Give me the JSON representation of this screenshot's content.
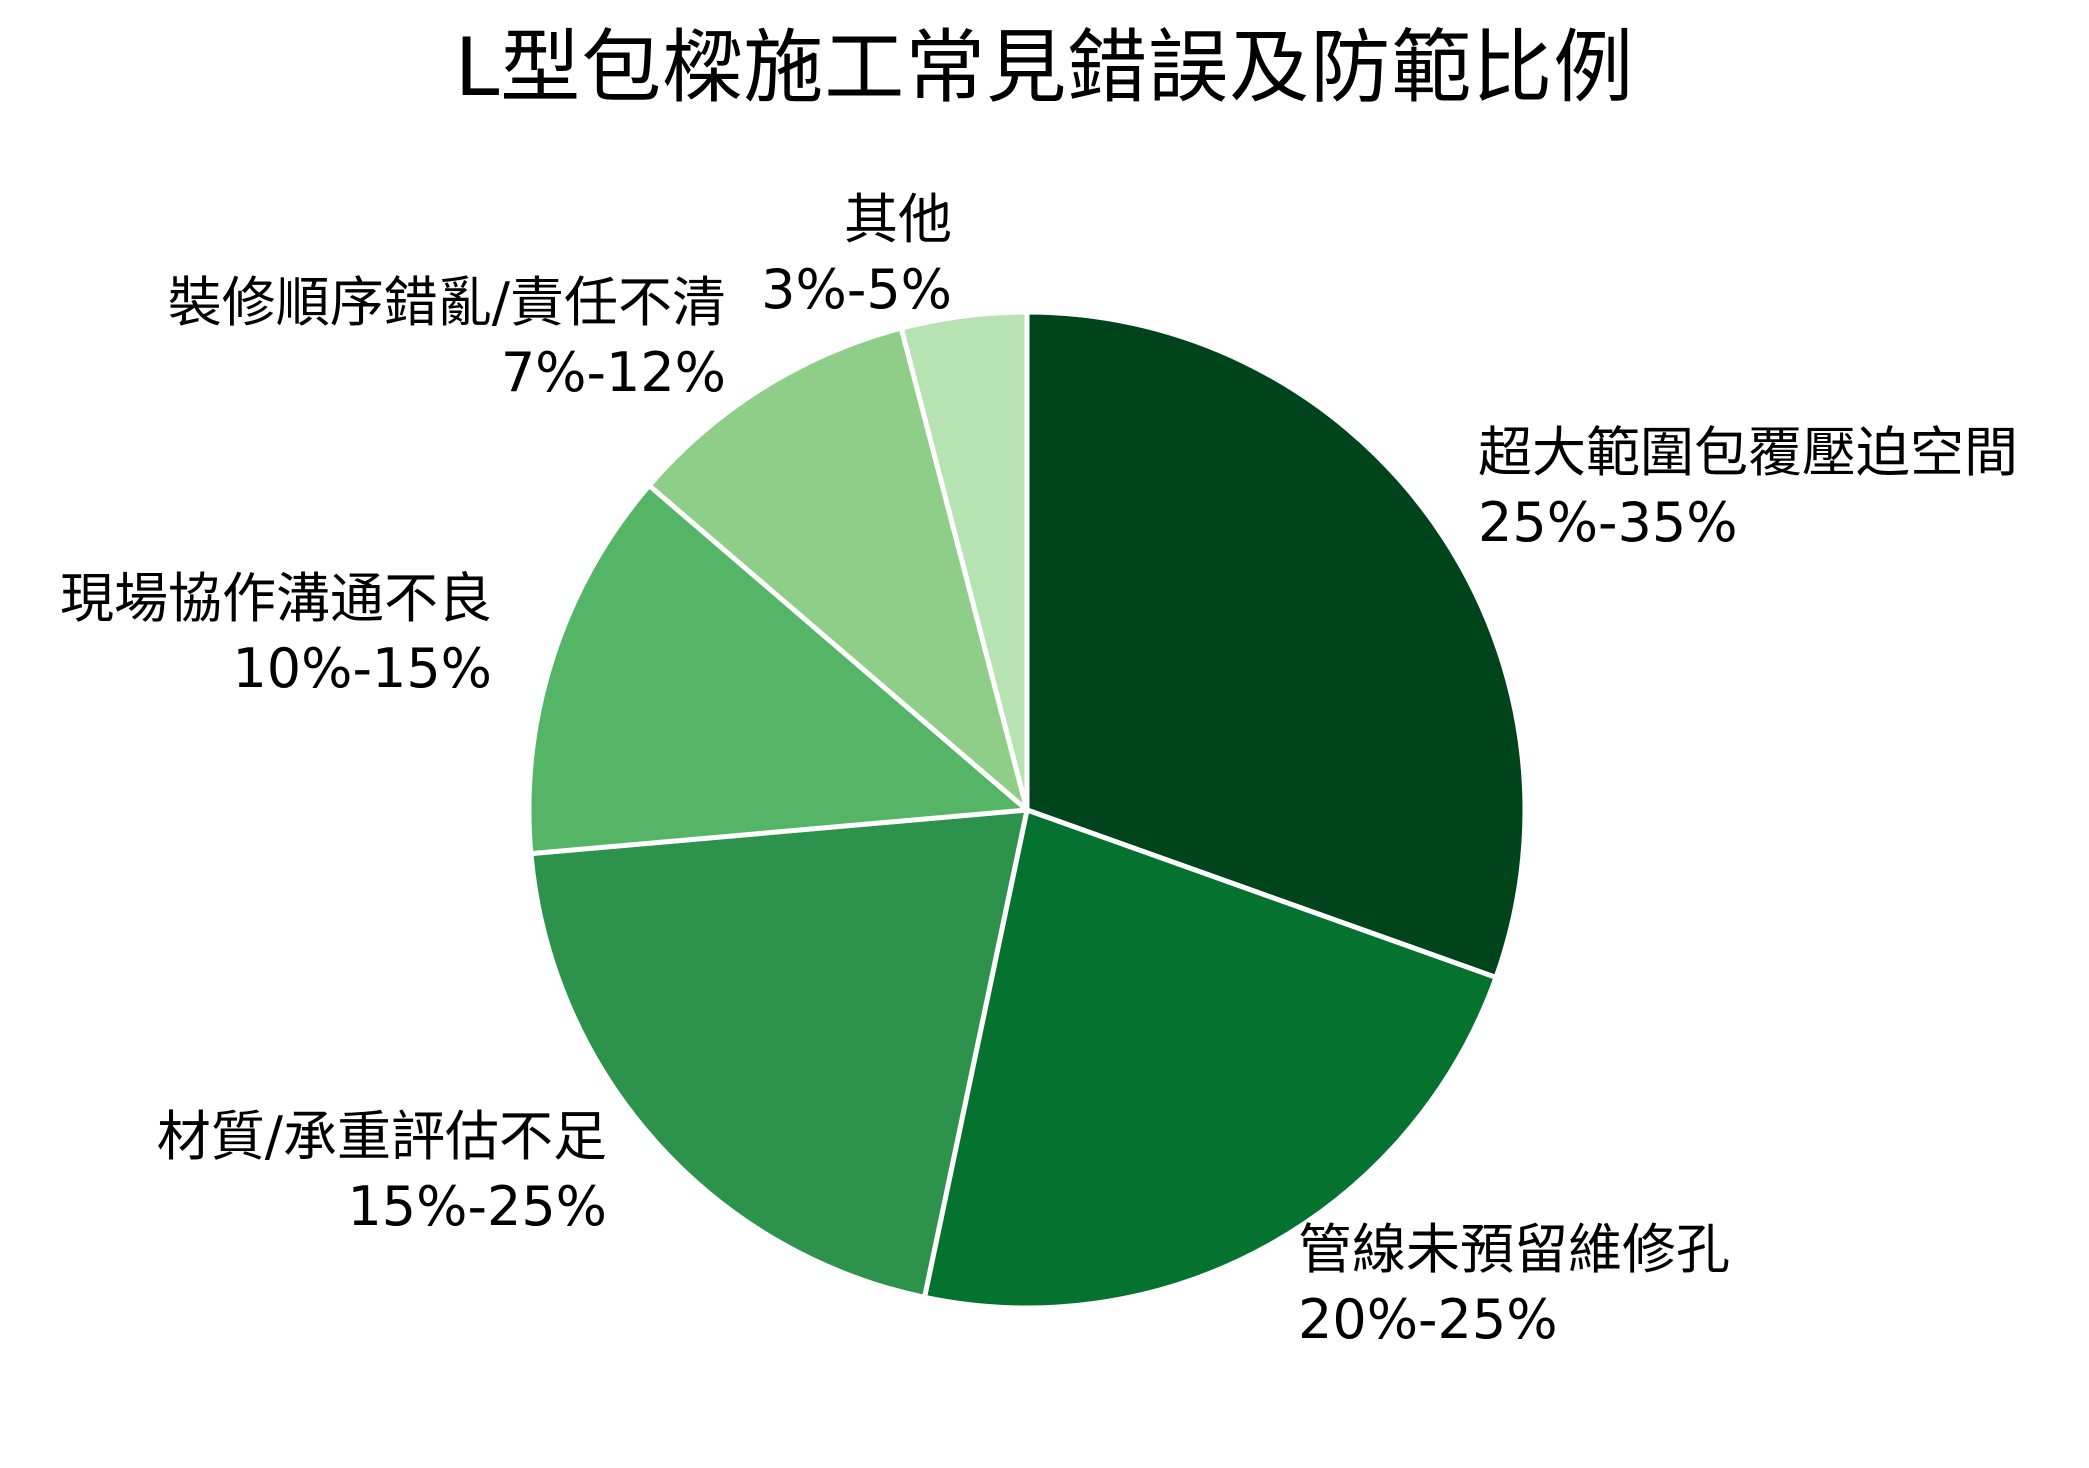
{
  "title": "L型包樑施工常見錯誤及防範比例",
  "chart_data": {
    "type": "pie",
    "title": "L型包樑施工常見錯誤及防範比例",
    "start_angle": "12 o'clock, clockwise",
    "slices": [
      {
        "label": "超大範圍包覆壓迫空間",
        "range": "25%-35%",
        "value": 30.0,
        "color": "#00441b"
      },
      {
        "label": "管線未預留維修孔",
        "range": "20%-25%",
        "value": 22.5,
        "color": "#067230"
      },
      {
        "label": "材質/承重評估不足",
        "range": "15%-25%",
        "value": 20.0,
        "color": "#2d924b"
      },
      {
        "label": "現場協作溝通不良",
        "range": "10%-15%",
        "value": 12.5,
        "color": "#55b567"
      },
      {
        "label": "裝修順序錯亂/責任不清",
        "range": "7%-12%",
        "value": 9.5,
        "color": "#8ece88"
      },
      {
        "label": "其他",
        "range": "3%-5%",
        "value": 4.0,
        "color": "#b7e2b1"
      }
    ],
    "categories": [
      "超大範圍包覆壓迫空間",
      "管線未預留維修孔",
      "材質/承重評估不足",
      "現場協作溝通不良",
      "裝修順序錯亂/責任不清",
      "其他"
    ],
    "values": [
      30.0,
      22.5,
      20.0,
      12.5,
      9.5,
      4.0
    ],
    "legend": "none (labels outside slices)"
  }
}
